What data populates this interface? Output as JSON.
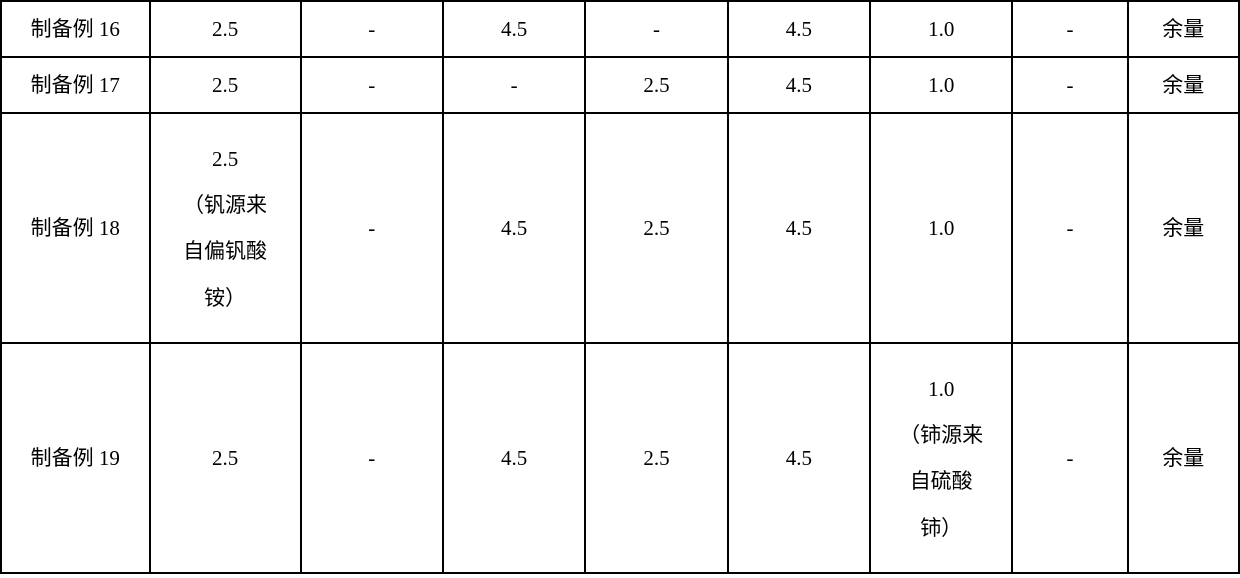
{
  "table": {
    "border_color": "#000000",
    "background_color": "#ffffff",
    "text_color": "#000000",
    "font_size": 21,
    "column_widths_percent": [
      12,
      12.2,
      11.5,
      11.5,
      11.5,
      11.5,
      11.5,
      9.3,
      9
    ],
    "rows": [
      {
        "label": "制备例 16",
        "cells": [
          "2.5",
          "-",
          "4.5",
          "-",
          "4.5",
          "1.0",
          "-",
          "余量"
        ]
      },
      {
        "label": "制备例 17",
        "cells": [
          "2.5",
          "-",
          "-",
          "2.5",
          "4.5",
          "1.0",
          "-",
          "余量"
        ]
      },
      {
        "label": "制备例 18",
        "cells": [
          "2.5\n（钒源来\n自偏钒酸\n铵）",
          "-",
          "4.5",
          "2.5",
          "4.5",
          "1.0",
          "-",
          "余量"
        ]
      },
      {
        "label": "制备例 19",
        "cells": [
          "2.5",
          "-",
          "4.5",
          "2.5",
          "4.5",
          "1.0\n（铈源来\n自硫酸\n铈）",
          "-",
          "余量"
        ]
      }
    ]
  }
}
